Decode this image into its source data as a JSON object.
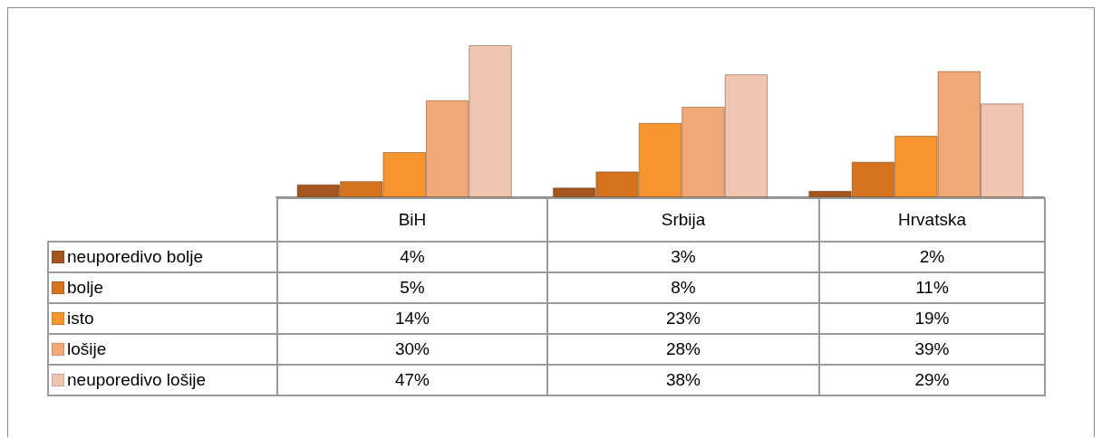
{
  "chart_data": {
    "type": "bar",
    "categories": [
      "BiH",
      "Srbija",
      "Hrvatska"
    ],
    "series": [
      {
        "name": "neuporedivo bolje",
        "color": "#a4561e",
        "values": [
          4,
          3,
          2
        ],
        "value_labels": [
          "4%",
          "3%",
          "2%"
        ]
      },
      {
        "name": "bolje",
        "color": "#d5731f",
        "values": [
          5,
          8,
          11
        ],
        "value_labels": [
          "5%",
          "8%",
          "11%"
        ]
      },
      {
        "name": "isto",
        "color": "#f7952e",
        "values": [
          14,
          23,
          19
        ],
        "value_labels": [
          "14%",
          "23%",
          "19%"
        ]
      },
      {
        "name": "lošije",
        "color": "#f3a878",
        "values": [
          30,
          28,
          39
        ],
        "value_labels": [
          "30%",
          "28%",
          "39%"
        ]
      },
      {
        "name": "neuporedivo lošije",
        "color": "#efc6b0",
        "values": [
          47,
          38,
          29
        ],
        "value_labels": [
          "47%",
          "38%",
          "29%"
        ]
      }
    ],
    "legend": "bottom left"
  }
}
